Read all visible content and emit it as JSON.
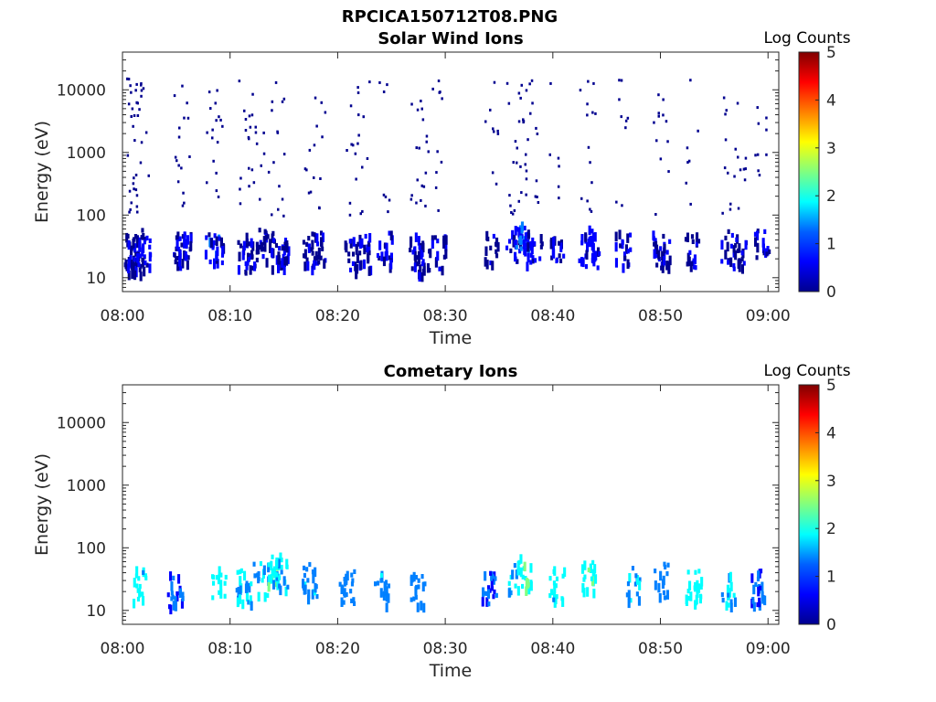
{
  "figure_title": "RPCICA150712T08.PNG",
  "colors": {
    "axis": "#262626",
    "colormap": [
      "#00008f",
      "#0000ff",
      "#0080ff",
      "#00ffff",
      "#80ff80",
      "#ffff00",
      "#ff8000",
      "#ff0000",
      "#800000"
    ]
  },
  "chart_data": [
    {
      "type": "heatmap",
      "title": "Solar Wind Ions",
      "xlabel": "Time",
      "ylabel": "Energy (eV)",
      "yscale": "log",
      "ylim": [
        6,
        40000
      ],
      "xlim_minutes": [
        0,
        61
      ],
      "x_tick_labels": [
        "08:00",
        "08:10",
        "08:20",
        "08:30",
        "08:40",
        "08:50",
        "09:00"
      ],
      "x_tick_minutes": [
        0,
        10,
        20,
        30,
        40,
        50,
        60
      ],
      "y_tick_labels": [
        "10",
        "100",
        "1000",
        "10000"
      ],
      "y_tick_values": [
        10,
        100,
        1000,
        10000
      ],
      "colorbar": {
        "title": "Log Counts",
        "range": [
          0,
          5
        ],
        "tick_labels": [
          "0",
          "1",
          "2",
          "3",
          "4",
          "5"
        ]
      },
      "grid": false,
      "bursts_minute_energy_logcount": [
        [
          0.6,
          25,
          0.2
        ],
        [
          0.9,
          20,
          0.3
        ],
        [
          1.3,
          30,
          0.2
        ],
        [
          1.8,
          22,
          0.4
        ],
        [
          5.3,
          25,
          0.2
        ],
        [
          5.6,
          30,
          0.4
        ],
        [
          8.3,
          30,
          0.8
        ],
        [
          8.6,
          25,
          0.3
        ],
        [
          11.3,
          20,
          0.3
        ],
        [
          11.8,
          25,
          0.2
        ],
        [
          13.2,
          30,
          0.2
        ],
        [
          14.4,
          25,
          0.3
        ],
        [
          14.8,
          20,
          0.2
        ],
        [
          17.4,
          25,
          0.3
        ],
        [
          18.2,
          28,
          0.2
        ],
        [
          21.3,
          22,
          0.2
        ],
        [
          22.3,
          25,
          0.2
        ],
        [
          24.3,
          28,
          0.3
        ],
        [
          27.3,
          25,
          0.3
        ],
        [
          27.8,
          20,
          0.2
        ],
        [
          29.3,
          25,
          0.2
        ],
        [
          34.2,
          28,
          0.2
        ],
        [
          36.2,
          30,
          0.3
        ],
        [
          37.0,
          35,
          0.8
        ],
        [
          37.3,
          40,
          0.9
        ],
        [
          38.2,
          28,
          0.3
        ],
        [
          40.2,
          30,
          0.3
        ],
        [
          43.0,
          32,
          0.6
        ],
        [
          43.5,
          25,
          0.4
        ],
        [
          46.4,
          28,
          0.3
        ],
        [
          49.6,
          30,
          0.4
        ],
        [
          50.2,
          25,
          0.3
        ],
        [
          52.8,
          25,
          0.3
        ],
        [
          56.2,
          28,
          0.3
        ],
        [
          57.3,
          25,
          0.2
        ],
        [
          59.3,
          30,
          0.2
        ]
      ]
    },
    {
      "type": "heatmap",
      "title": "Cometary Ions",
      "xlabel": "Time",
      "ylabel": "Energy (eV)",
      "yscale": "log",
      "ylim": [
        6,
        40000
      ],
      "xlim_minutes": [
        0,
        61
      ],
      "x_tick_labels": [
        "08:00",
        "08:10",
        "08:20",
        "08:30",
        "08:40",
        "08:50",
        "09:00"
      ],
      "x_tick_minutes": [
        0,
        10,
        20,
        30,
        40,
        50,
        60
      ],
      "y_tick_labels": [
        "10",
        "100",
        "1000",
        "10000"
      ],
      "y_tick_values": [
        10,
        100,
        1000,
        10000
      ],
      "colorbar": {
        "title": "Log Counts",
        "range": [
          0,
          5
        ],
        "tick_labels": [
          "0",
          "1",
          "2",
          "3",
          "4",
          "5"
        ]
      },
      "grid": false,
      "bursts_minute_energy_logcount": [
        [
          1.5,
          25,
          1.8
        ],
        [
          4.8,
          20,
          1.0
        ],
        [
          8.9,
          28,
          1.9
        ],
        [
          11.2,
          22,
          1.6
        ],
        [
          12.8,
          30,
          1.5
        ],
        [
          14.0,
          45,
          2.1
        ],
        [
          14.6,
          35,
          1.6
        ],
        [
          17.3,
          28,
          1.4
        ],
        [
          20.8,
          22,
          1.2
        ],
        [
          24.0,
          20,
          1.3
        ],
        [
          27.3,
          20,
          1.2
        ],
        [
          34.0,
          22,
          1.0
        ],
        [
          36.5,
          30,
          1.6
        ],
        [
          37.3,
          40,
          2.0
        ],
        [
          40.3,
          25,
          1.8
        ],
        [
          43.3,
          35,
          2.0
        ],
        [
          47.4,
          25,
          1.6
        ],
        [
          50.0,
          28,
          1.4
        ],
        [
          53.0,
          22,
          1.8
        ],
        [
          56.3,
          20,
          1.6
        ],
        [
          59.0,
          22,
          1.0
        ]
      ]
    }
  ]
}
